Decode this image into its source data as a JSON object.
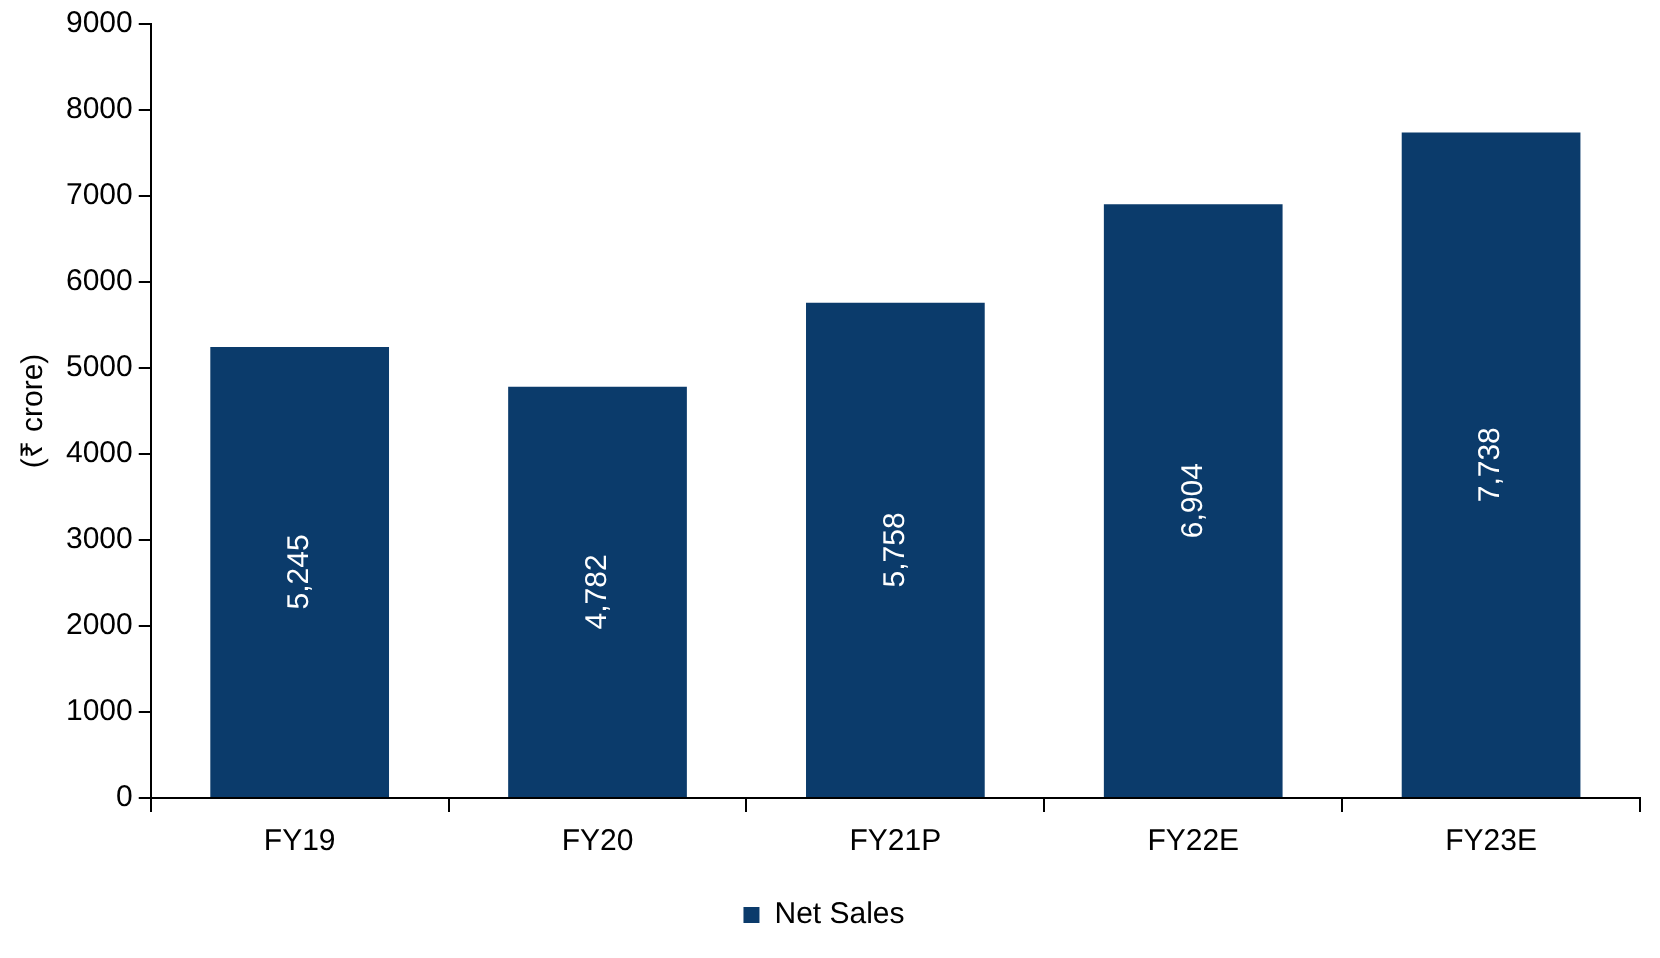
{
  "chart_data": {
    "type": "bar",
    "ylabel": "(₹ crore)",
    "categories": [
      "FY19",
      "FY20",
      "FY21P",
      "FY22E",
      "FY23E"
    ],
    "series": [
      {
        "name": "Net Sales",
        "color": "#0b3b6b",
        "values": [
          5245,
          4782,
          5758,
          6904,
          7738
        ],
        "value_labels": [
          "5,245",
          "4,782",
          "5,758",
          "6,904",
          "7,738"
        ]
      }
    ],
    "ylim": [
      0,
      9000
    ],
    "yticks": [
      0,
      1000,
      2000,
      3000,
      4000,
      5000,
      6000,
      7000,
      8000,
      9000
    ],
    "grid": false,
    "legend": "bottom"
  }
}
